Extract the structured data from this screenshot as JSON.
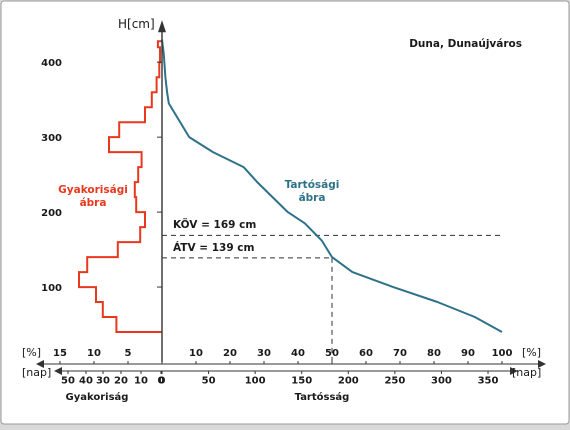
{
  "chart_data": {
    "type": "line",
    "location": "Duna, Dunaújváros",
    "y_axis": {
      "label": "H[cm]",
      "range": [
        0,
        440
      ],
      "ticks": [
        100,
        200,
        300,
        400
      ]
    },
    "right_axis": {
      "percent_unit": "[%]",
      "percent_range": [
        0,
        100
      ],
      "percent_ticks": [
        "0",
        "10",
        "20",
        "30",
        "40",
        "50",
        "60",
        "70",
        "80",
        "90",
        "100"
      ],
      "day_unit": "[nap]",
      "day_range": [
        0,
        365
      ],
      "day_ticks": [
        "0",
        "50",
        "100",
        "150",
        "200",
        "250",
        "300",
        "350"
      ],
      "caption": "Tartósság"
    },
    "left_axis": {
      "percent_unit": "[%]",
      "percent_range": [
        0,
        15
      ],
      "percent_ticks": [
        "15",
        "10",
        "5"
      ],
      "day_unit": "[nap]",
      "day_ticks": [
        "50",
        "40",
        "30",
        "20",
        "10",
        "0"
      ],
      "caption": "Gyakoriság"
    },
    "series": [
      {
        "name": "Tartósági ábra",
        "color": "#2e7189",
        "points": [
          [
            0,
            430
          ],
          [
            0.5,
            412
          ],
          [
            1,
            380
          ],
          [
            1.5,
            360
          ],
          [
            2,
            345
          ],
          [
            8,
            300
          ],
          [
            15,
            280
          ],
          [
            24,
            260
          ],
          [
            28,
            240
          ],
          [
            37,
            200
          ],
          [
            42,
            185
          ],
          [
            47,
            162
          ],
          [
            50,
            140
          ],
          [
            56,
            120
          ],
          [
            68,
            100
          ],
          [
            81,
            80
          ],
          [
            92,
            60
          ],
          [
            100,
            40
          ]
        ]
      },
      {
        "name": "Gyakorisági ábra",
        "color": "#e8381e",
        "steps": [
          {
            "low": 40,
            "high": 60,
            "value": 6.7
          },
          {
            "low": 60,
            "high": 80,
            "value": 8.7
          },
          {
            "low": 80,
            "high": 100,
            "value": 9.7
          },
          {
            "low": 100,
            "high": 120,
            "value": 12.2
          },
          {
            "low": 120,
            "high": 140,
            "value": 11.0
          },
          {
            "low": 140,
            "high": 160,
            "value": 6.5
          },
          {
            "low": 160,
            "high": 180,
            "value": 3.2
          },
          {
            "low": 180,
            "high": 200,
            "value": 2.5
          },
          {
            "low": 200,
            "high": 220,
            "value": 3.8
          },
          {
            "low": 220,
            "high": 240,
            "value": 4.0
          },
          {
            "low": 240,
            "high": 260,
            "value": 3.5
          },
          {
            "low": 260,
            "high": 280,
            "value": 3.0
          },
          {
            "low": 280,
            "high": 300,
            "value": 7.8
          },
          {
            "low": 300,
            "high": 320,
            "value": 6.3
          },
          {
            "low": 320,
            "high": 340,
            "value": 2.5
          },
          {
            "low": 340,
            "high": 360,
            "value": 1.5
          },
          {
            "low": 360,
            "high": 380,
            "value": 0.8
          },
          {
            "low": 380,
            "high": 400,
            "value": 0.4
          },
          {
            "low": 400,
            "high": 420,
            "value": 0.3
          },
          {
            "low": 420,
            "high": 428,
            "value": 0.6
          }
        ]
      }
    ],
    "levels": [
      {
        "label": "KÖV = 169 cm",
        "value": 169
      },
      {
        "label": "ÁTV = 139 cm",
        "value": 139,
        "percent": 50
      }
    ],
    "annotations": {
      "durability_label": [
        "Tartósági",
        "ábra"
      ],
      "frequency_label": [
        "Gyakorisági",
        "ábra"
      ]
    }
  }
}
